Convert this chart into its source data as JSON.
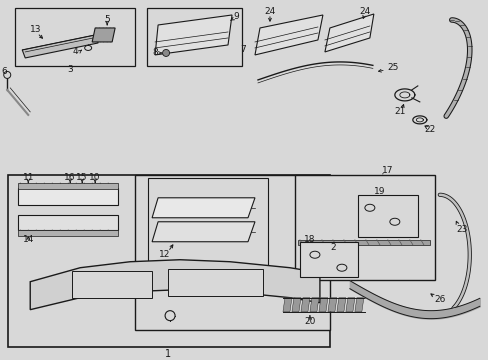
{
  "bg_color": "#d8d8d8",
  "line_color": "#1a1a1a",
  "fig_width": 4.89,
  "fig_height": 3.6,
  "dpi": 100
}
